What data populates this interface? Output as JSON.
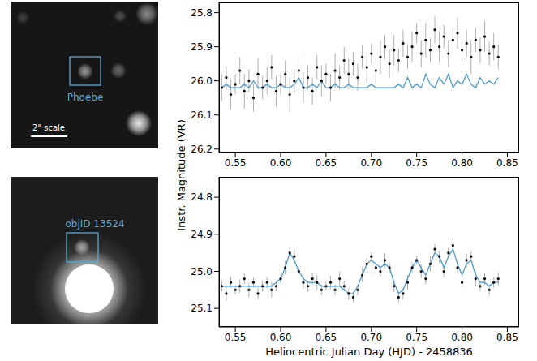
{
  "images": [
    {
      "label": "Phoebe",
      "scale_label": "2\" scale"
    },
    {
      "label": "objID 13524"
    }
  ],
  "chart_data": [
    {
      "type": "scatter",
      "y_label": "Instr. Magnitude (VR)",
      "x_label": "Heliocentric Julian Day (HJD) - 2458836",
      "xlim": [
        0.532,
        0.863
      ],
      "xticks": [
        0.55,
        {
          "value": 0.6,
          "label": "0.60"
        },
        0.65,
        {
          "value": 0.7,
          "label": "0.70"
        },
        0.75,
        {
          "value": 0.8,
          "label": "0.80"
        },
        0.85
      ],
      "ylim": [
        26.21,
        25.77
      ],
      "yticks": [
        25.8,
        25.9,
        {
          "value": 26,
          "label": "26.0"
        },
        26.1,
        26.2
      ],
      "series": [
        {
          "type": "scatter",
          "color": "#000000",
          "marker": "circle",
          "x": [
            0.535,
            0.54,
            0.545,
            0.55,
            0.555,
            0.56,
            0.565,
            0.57,
            0.575,
            0.58,
            0.585,
            0.59,
            0.595,
            0.6,
            0.605,
            0.61,
            0.615,
            0.62,
            0.625,
            0.63,
            0.635,
            0.64,
            0.645,
            0.65,
            0.655,
            0.66,
            0.665,
            0.67,
            0.675,
            0.68,
            0.685,
            0.69,
            0.695,
            0.7,
            0.705,
            0.71,
            0.715,
            0.72,
            0.725,
            0.73,
            0.735,
            0.74,
            0.745,
            0.75,
            0.755,
            0.76,
            0.765,
            0.77,
            0.775,
            0.78,
            0.785,
            0.79,
            0.795,
            0.8,
            0.805,
            0.81,
            0.815,
            0.82,
            0.825,
            0.83,
            0.835,
            0.84
          ],
          "values": [
            26.02,
            25.99,
            26.04,
            26.01,
            25.97,
            26.03,
            26.0,
            26.05,
            25.98,
            26.02,
            26.0,
            25.96,
            26.03,
            26.01,
            25.98,
            26.04,
            26.0,
            25.97,
            26.02,
            25.99,
            26.03,
            25.96,
            26.0,
            25.98,
            26.02,
            25.97,
            25.99,
            25.94,
            25.98,
            25.95,
            25.99,
            25.93,
            25.96,
            25.92,
            25.97,
            25.93,
            25.9,
            25.95,
            25.91,
            25.94,
            25.89,
            25.93,
            25.9,
            25.86,
            25.92,
            25.88,
            25.91,
            25.85,
            25.9,
            25.87,
            25.92,
            25.88,
            25.86,
            25.91,
            25.89,
            25.93,
            25.88,
            25.91,
            25.87,
            25.92,
            25.9,
            25.93
          ],
          "errors": [
            0.04,
            0.035,
            0.045,
            0.03,
            0.04,
            0.05,
            0.035,
            0.04,
            0.045,
            0.035,
            0.04,
            0.035,
            0.045,
            0.03,
            0.04,
            0.05,
            0.035,
            0.04,
            0.045,
            0.035,
            0.04,
            0.035,
            0.045,
            0.03,
            0.04,
            0.05,
            0.035,
            0.04,
            0.045,
            0.035,
            0.04,
            0.035,
            0.045,
            0.03,
            0.04,
            0.05,
            0.035,
            0.04,
            0.045,
            0.035,
            0.04,
            0.035,
            0.045,
            0.03,
            0.04,
            0.05,
            0.035,
            0.04,
            0.045,
            0.035,
            0.04,
            0.035,
            0.045,
            0.03,
            0.04,
            0.05,
            0.035,
            0.04,
            0.045,
            0.035,
            0.04,
            0.035
          ]
        },
        {
          "type": "line",
          "color": "#4a9bd4",
          "line_style": "solid",
          "x": [
            0.535,
            0.54,
            0.545,
            0.55,
            0.555,
            0.56,
            0.565,
            0.57,
            0.575,
            0.58,
            0.585,
            0.59,
            0.595,
            0.6,
            0.605,
            0.61,
            0.615,
            0.62,
            0.625,
            0.63,
            0.635,
            0.64,
            0.645,
            0.65,
            0.655,
            0.66,
            0.665,
            0.67,
            0.675,
            0.68,
            0.685,
            0.69,
            0.695,
            0.7,
            0.705,
            0.71,
            0.715,
            0.72,
            0.725,
            0.73,
            0.735,
            0.74,
            0.745,
            0.75,
            0.755,
            0.76,
            0.765,
            0.77,
            0.775,
            0.78,
            0.785,
            0.79,
            0.795,
            0.8,
            0.805,
            0.81,
            0.815,
            0.82,
            0.825,
            0.83,
            0.835,
            0.84
          ],
          "values": [
            26.02,
            26.01,
            26.02,
            26.02,
            26.02,
            26.01,
            26.02,
            26.0,
            26.02,
            26.02,
            26.01,
            26.02,
            26.02,
            26.01,
            26.02,
            26.02,
            26.01,
            25.99,
            26.02,
            26.02,
            26.01,
            26.02,
            26.0,
            26.02,
            26.02,
            26.01,
            26.02,
            26.02,
            26.01,
            26.02,
            26.02,
            26.02,
            26.02,
            26.01,
            26.02,
            26.02,
            26.02,
            26.02,
            26.02,
            26.01,
            26.02,
            25.99,
            26.02,
            26.01,
            26.02,
            25.98,
            26.01,
            26.02,
            25.99,
            26.01,
            25.98,
            26.02,
            26.0,
            26.01,
            25.98,
            26.01,
            26.02,
            25.99,
            26.01,
            26.0,
            26.01,
            25.99
          ]
        }
      ]
    },
    {
      "type": "scatter",
      "xlim": [
        0.532,
        0.863
      ],
      "xticks": [
        0.55,
        {
          "value": 0.6,
          "label": "0.60"
        },
        0.65,
        {
          "value": 0.7,
          "label": "0.70"
        },
        0.75,
        {
          "value": 0.8,
          "label": "0.80"
        },
        0.85
      ],
      "ylim": [
        25.15,
        24.745
      ],
      "yticks": [
        24.8,
        24.9,
        {
          "value": 25,
          "label": "25.0"
        },
        25.1
      ],
      "series": [
        {
          "type": "scatter",
          "color": "#000000",
          "marker": "circle",
          "x": [
            0.535,
            0.54,
            0.545,
            0.55,
            0.555,
            0.56,
            0.565,
            0.57,
            0.575,
            0.58,
            0.585,
            0.59,
            0.595,
            0.6,
            0.605,
            0.61,
            0.615,
            0.62,
            0.625,
            0.63,
            0.635,
            0.64,
            0.645,
            0.65,
            0.655,
            0.66,
            0.665,
            0.67,
            0.675,
            0.68,
            0.685,
            0.69,
            0.695,
            0.7,
            0.705,
            0.71,
            0.715,
            0.72,
            0.725,
            0.73,
            0.735,
            0.74,
            0.745,
            0.75,
            0.755,
            0.76,
            0.765,
            0.77,
            0.775,
            0.78,
            0.785,
            0.79,
            0.795,
            0.8,
            0.805,
            0.81,
            0.815,
            0.82,
            0.825,
            0.83,
            0.835,
            0.84
          ],
          "values": [
            25.04,
            25.06,
            25.03,
            25.05,
            25.04,
            25.02,
            25.05,
            25.03,
            25.06,
            25.04,
            25.03,
            25.05,
            25.04,
            25.02,
            24.99,
            24.95,
            24.96,
            25.0,
            25.03,
            25.04,
            25.02,
            25.03,
            25.05,
            25.04,
            25.03,
            25.05,
            25.02,
            25.04,
            25.06,
            25.07,
            25.05,
            25.01,
            24.98,
            24.96,
            24.99,
            25.0,
            24.97,
            24.99,
            25.04,
            25.07,
            25.06,
            25.03,
            24.99,
            24.97,
            25.0,
            25.02,
            24.98,
            24.94,
            24.96,
            25.0,
            24.95,
            24.93,
            24.99,
            25.03,
            24.97,
            24.96,
            25.02,
            25.04,
            25.02,
            25.05,
            25.03,
            25.02
          ],
          "errors": [
            0.015,
            0.02,
            0.015,
            0.012,
            0.018,
            0.015,
            0.02,
            0.014,
            0.016,
            0.015,
            0.015,
            0.02,
            0.015,
            0.012,
            0.018,
            0.015,
            0.02,
            0.014,
            0.016,
            0.015,
            0.015,
            0.02,
            0.015,
            0.012,
            0.018,
            0.015,
            0.02,
            0.014,
            0.016,
            0.015,
            0.015,
            0.02,
            0.015,
            0.012,
            0.018,
            0.015,
            0.02,
            0.014,
            0.016,
            0.015,
            0.015,
            0.02,
            0.015,
            0.012,
            0.018,
            0.015,
            0.02,
            0.014,
            0.016,
            0.015,
            0.015,
            0.02,
            0.015,
            0.012,
            0.018,
            0.015,
            0.02,
            0.014,
            0.016,
            0.015,
            0.015,
            0.018
          ]
        },
        {
          "type": "line",
          "color": "#4a9bd4",
          "line_style": "solid",
          "x": [
            0.535,
            0.54,
            0.545,
            0.55,
            0.555,
            0.56,
            0.565,
            0.57,
            0.575,
            0.58,
            0.585,
            0.59,
            0.595,
            0.6,
            0.605,
            0.61,
            0.615,
            0.62,
            0.625,
            0.63,
            0.635,
            0.64,
            0.645,
            0.65,
            0.655,
            0.66,
            0.665,
            0.67,
            0.675,
            0.68,
            0.685,
            0.69,
            0.695,
            0.7,
            0.705,
            0.71,
            0.715,
            0.72,
            0.725,
            0.73,
            0.735,
            0.74,
            0.745,
            0.75,
            0.755,
            0.76,
            0.765,
            0.77,
            0.775,
            0.78,
            0.785,
            0.79,
            0.795,
            0.8,
            0.805,
            0.81,
            0.815,
            0.82,
            0.825,
            0.83,
            0.835,
            0.84
          ],
          "values": [
            25.04,
            25.04,
            25.04,
            25.04,
            25.04,
            25.04,
            25.04,
            25.04,
            25.04,
            25.04,
            25.04,
            25.04,
            25.03,
            25.02,
            24.99,
            24.95,
            24.97,
            25.0,
            25.02,
            25.03,
            25.03,
            25.03,
            25.04,
            25.04,
            25.04,
            25.04,
            25.04,
            25.05,
            25.06,
            25.06,
            25.04,
            25.01,
            24.98,
            24.97,
            24.98,
            24.99,
            24.98,
            24.99,
            25.03,
            25.06,
            25.05,
            25.02,
            24.99,
            24.97,
            24.99,
            25.01,
            24.98,
            24.95,
            24.96,
            24.99,
            24.96,
            24.94,
            24.98,
            25.01,
            24.98,
            24.97,
            25.01,
            25.03,
            25.03,
            25.04,
            25.03,
            25.03
          ]
        }
      ]
    }
  ]
}
